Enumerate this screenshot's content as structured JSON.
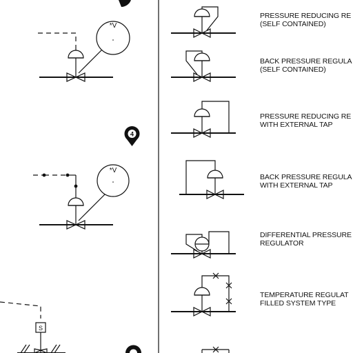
{
  "symbols": [
    {
      "line1": "PRESSURE REDUCING RE",
      "line2": "(SELF CONTAINED)"
    },
    {
      "line1": "BACK PRESSURE REGULA",
      "line2": "(SELF CONTAINED)"
    },
    {
      "line1": "PRESSURE REDUCING RE",
      "line2": "WITH EXTERNAL TAP"
    },
    {
      "line1": "BACK PRESSURE REGULA",
      "line2": "WITH EXTERNAL TAP"
    },
    {
      "line1": "DIFFERENTIAL PRESSURE",
      "line2": "REGULATOR"
    },
    {
      "line1": "TEMPERATURE REGULAT",
      "line2": "FILLED SYSTEM TYPE"
    }
  ],
  "left_symbols": {
    "gauge_label_1": "*V",
    "gauge_label_2": "*V",
    "marker_1": "4",
    "solenoid_label": "S"
  },
  "colors": {
    "line": "#111111",
    "background": "#ffffff"
  }
}
